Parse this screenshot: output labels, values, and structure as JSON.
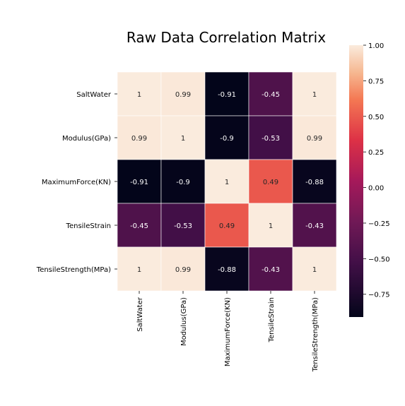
{
  "chart_data": {
    "type": "heatmap",
    "title": "Raw Data Correlation Matrix",
    "row_labels": [
      "SaltWater",
      "Modulus(GPa)",
      "MaximumForce(KN)",
      "TensileStrain",
      "TensileStrength(MPa)"
    ],
    "col_labels": [
      "SaltWater",
      "Modulus(GPa)",
      "MaximumForce(KN)",
      "TensileStrain",
      "TensileStrength(MPa)"
    ],
    "values": [
      [
        1,
        0.99,
        -0.91,
        -0.45,
        1
      ],
      [
        0.99,
        1,
        -0.9,
        -0.53,
        0.99
      ],
      [
        -0.91,
        -0.9,
        1,
        0.49,
        -0.88
      ],
      [
        -0.45,
        -0.53,
        0.49,
        1,
        -0.43
      ],
      [
        1,
        0.99,
        -0.88,
        -0.43,
        1
      ]
    ],
    "annotations": [
      [
        "1",
        "0.99",
        "-0.91",
        "-0.45",
        "1"
      ],
      [
        "0.99",
        "1",
        "-0.9",
        "-0.53",
        "0.99"
      ],
      [
        "-0.91",
        "-0.9",
        "1",
        "0.49",
        "-0.88"
      ],
      [
        "-0.45",
        "-0.53",
        "0.49",
        "1",
        "-0.43"
      ],
      [
        "1",
        "0.99",
        "-0.88",
        "-0.43",
        "1"
      ]
    ],
    "colorbar": {
      "vmin": -0.91,
      "vmax": 1,
      "ticks": [
        1.0,
        0.75,
        0.5,
        0.25,
        0.0,
        -0.25,
        -0.5,
        -0.75
      ],
      "tick_labels": [
        "1.00",
        "0.75",
        "0.50",
        "0.25",
        "0.00",
        "−0.25",
        "−0.50",
        "−0.75"
      ],
      "colormap": "rocket"
    },
    "grid": false
  }
}
